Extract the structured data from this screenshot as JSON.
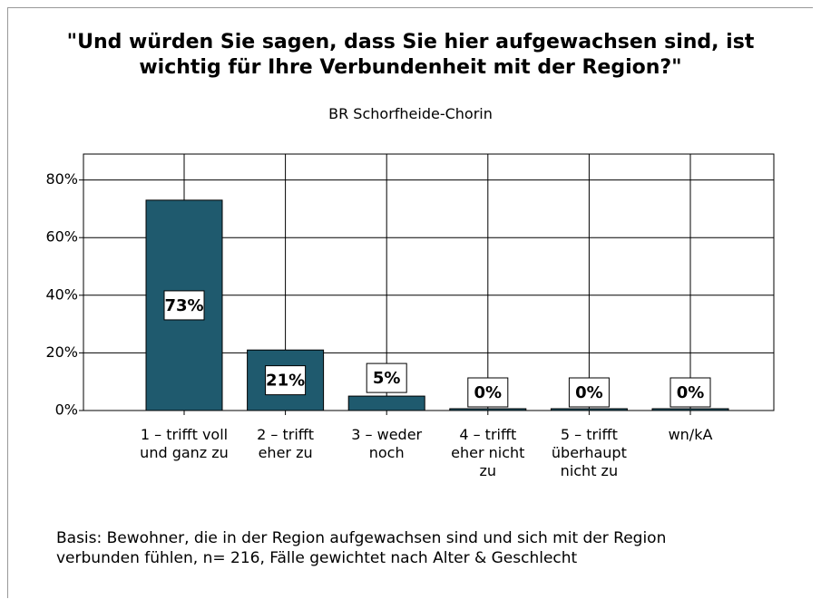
{
  "chart_data": {
    "type": "bar",
    "title": [
      "\"Und würden Sie sagen, dass Sie hier aufgewachsen sind, ist",
      "wichtig für Ihre Verbundenheit mit der Region?\""
    ],
    "subtitle": "BR Schorfheide-Chorin",
    "categories": [
      "1 – trifft voll und ganz zu",
      "2 – trifft eher zu",
      "3 – weder noch",
      "4 – trifft eher nicht zu",
      "5 – trifft überhaupt nicht zu",
      "wn/kA"
    ],
    "values": [
      73,
      21,
      5,
      0,
      0,
      0
    ],
    "value_labels": [
      "73%",
      "21%",
      "5%",
      "0%",
      "0%",
      "0%"
    ],
    "color": "#1f5a6e",
    "ylim": [
      0,
      89
    ],
    "yticks": [
      {
        "value": 0,
        "label": "0%"
      },
      {
        "value": 20,
        "label": "20%"
      },
      {
        "value": 40,
        "label": "40%"
      },
      {
        "value": 60,
        "label": "60%"
      },
      {
        "value": 80,
        "label": "80%"
      }
    ],
    "grid": true,
    "note": [
      "Basis: Bewohner, die in der Region aufgewachsen sind und sich mit der Region",
      "verbunden fühlen, n= 216, Fälle gewichtet nach Alter & Geschlecht"
    ]
  }
}
